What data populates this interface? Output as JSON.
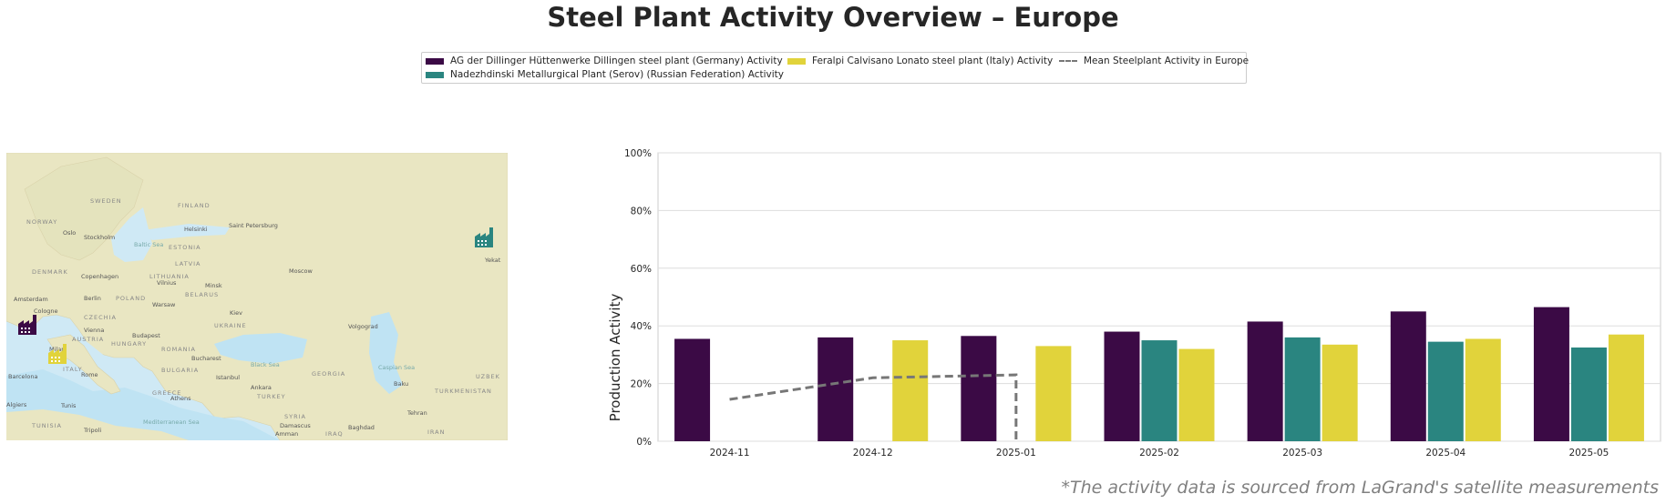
{
  "title": "Steel Plant Activity Overview – Europe",
  "footnote": "*The activity data is sourced from LaGrand's satellite measurements",
  "colors": {
    "dillingen": "#3b0a45",
    "serov": "#2a8580",
    "calvisano": "#e1d33b",
    "mean": "#777777"
  },
  "legend": [
    {
      "label": "AG der Dillinger Hüttenwerke Dillingen steel plant (Germany) Activity",
      "color": "#3b0a45",
      "style": "bar"
    },
    {
      "label": "Nadezhdinski Metallurgical Plant (Serov) (Russian Federation) Activity",
      "color": "#2a8580",
      "style": "bar"
    },
    {
      "label": "Feralpi Calvisano Lonato steel plant (Italy) Activity",
      "color": "#e1d33b",
      "style": "bar"
    },
    {
      "label": "Mean Steelplant Activity in Europe",
      "color": "#777777",
      "style": "dashed-line"
    }
  ],
  "map": {
    "labels": [
      "SWEDEN",
      "FINLAND",
      "NORWAY",
      "Oslo",
      "Stockholm",
      "Helsinki",
      "Saint Petersburg",
      "ESTONIA",
      "LATVIA",
      "Baltic Sea",
      "DENMARK",
      "Copenhagen",
      "LITHUANIA",
      "Vilnius",
      "Moscow",
      "Minsk",
      "BELARUS",
      "Amsterdam",
      "Berlin",
      "POLAND",
      "Warsaw",
      "Cologne",
      "CZECHIA",
      "Kiev",
      "UKRAINE",
      "Volgograd",
      "Vienna",
      "AUSTRIA",
      "Budapest",
      "HUNGARY",
      "ROMANIA",
      "Bucharest",
      "Milan",
      "ITALY",
      "Rome",
      "BULGARIA",
      "Black Sea",
      "Istanbul",
      "GEORGIA",
      "Caspian Sea",
      "Baku",
      "UZBEK",
      "TURKMENISTAN",
      "Barcelona",
      "GREECE",
      "Athens",
      "Ankara",
      "TURKEY",
      "Tunis",
      "TUNISIA",
      "Tripoli",
      "Mediterranean Sea",
      "SYRIA",
      "Damascus",
      "Amman",
      "IRAQ",
      "Baghdad",
      "Tehran",
      "IRAN",
      "Algiers",
      "Yekat"
    ],
    "markers": [
      {
        "name": "Dillingen",
        "icon": "factory-icon",
        "color": "#3b0a45"
      },
      {
        "name": "Calvisano",
        "icon": "factory-icon",
        "color": "#e1d33b"
      },
      {
        "name": "Serov",
        "icon": "factory-icon",
        "color": "#2a8580"
      }
    ]
  },
  "chart_data": {
    "type": "bar",
    "title": "",
    "xlabel": "",
    "ylabel": "Production Activity",
    "ylim": [
      0,
      100
    ],
    "yticks": [
      "0%",
      "20%",
      "40%",
      "60%",
      "80%",
      "100%"
    ],
    "grid": true,
    "categories": [
      "2024-11",
      "2024-12",
      "2025-01",
      "2025-02",
      "2025-03",
      "2025-04",
      "2025-05"
    ],
    "series": [
      {
        "name": "AG der Dillinger Hüttenwerke Dillingen steel plant (Germany) Activity",
        "type": "bar",
        "color": "#3b0a45",
        "values": [
          35.5,
          36,
          36.5,
          38,
          41.5,
          45,
          46.5
        ]
      },
      {
        "name": "Nadezhdinski Metallurgical Plant (Serov) (Russian Federation) Activity",
        "type": "bar",
        "color": "#2a8580",
        "values": [
          null,
          null,
          null,
          35,
          36,
          34.5,
          32.5
        ]
      },
      {
        "name": "Feralpi Calvisano Lonato steel plant (Italy) Activity",
        "type": "bar",
        "color": "#e1d33b",
        "values": [
          null,
          35,
          33,
          32,
          33.5,
          35.5,
          37
        ]
      },
      {
        "name": "Mean Steelplant Activity in Europe",
        "type": "line",
        "style": "dashed",
        "color": "#777777",
        "values": [
          14.5,
          22,
          23,
          0,
          null,
          null,
          null
        ]
      }
    ]
  }
}
